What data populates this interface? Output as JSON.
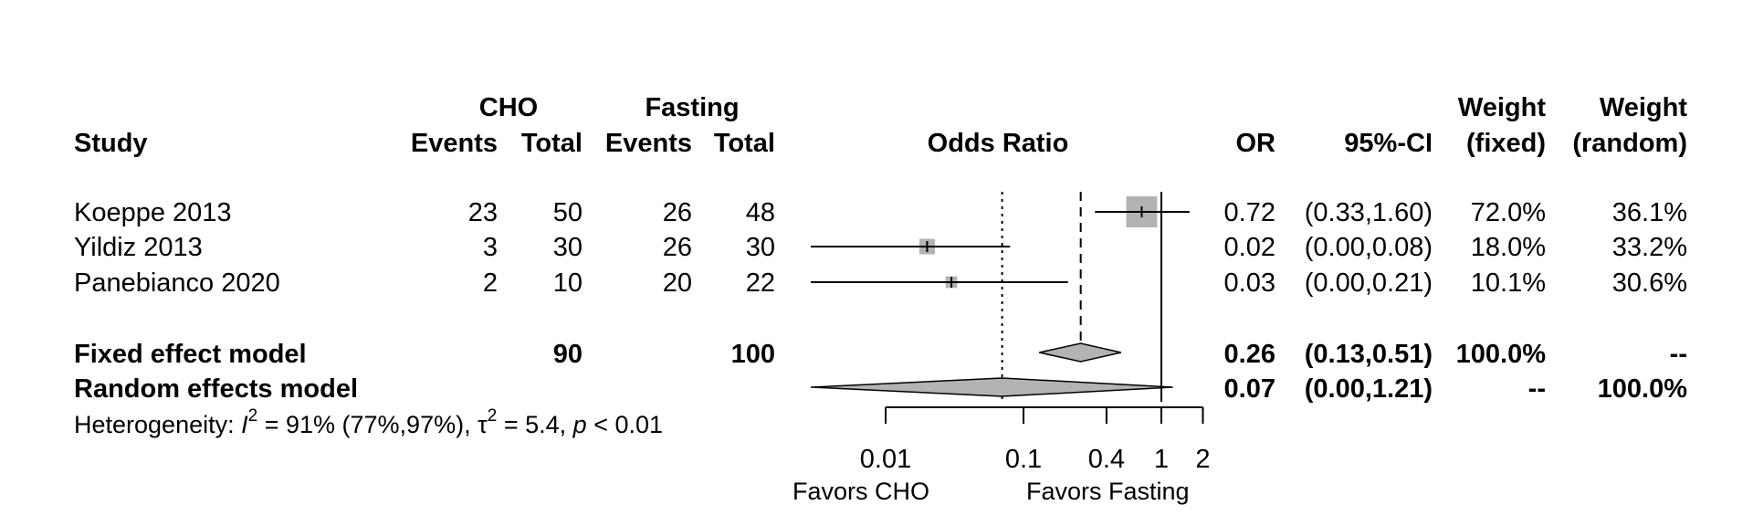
{
  "chart_data": {
    "type": "forest",
    "headers": {
      "study": "Study",
      "group1": "CHO",
      "group2": "Fasting",
      "events": "Events",
      "total": "Total",
      "plot_label": "Odds Ratio",
      "or": "OR",
      "ci": "95%-CI",
      "weight": "Weight",
      "fixed": "(fixed)",
      "random": "(random)"
    },
    "studies": [
      {
        "name": "Koeppe 2013",
        "cho_events": "23",
        "cho_total": "50",
        "fasting_events": "26",
        "fasting_total": "48",
        "or": 0.72,
        "ci_low": 0.33,
        "ci_high": 1.6,
        "or_text": "0.72",
        "ci_text": "(0.33,1.60)",
        "w_fixed": 72.0,
        "w_random": 36.1,
        "w_fixed_text": "72.0%",
        "w_random_text": "36.1%"
      },
      {
        "name": "Yildiz 2013",
        "cho_events": "3",
        "cho_total": "30",
        "fasting_events": "26",
        "fasting_total": "30",
        "or": 0.02,
        "ci_low": 0.0,
        "ci_high": 0.08,
        "or_text": "0.02",
        "ci_text": "(0.00,0.08)",
        "w_fixed": 18.0,
        "w_random": 33.2,
        "w_fixed_text": "18.0%",
        "w_random_text": "33.2%"
      },
      {
        "name": "Panebianco 2020",
        "cho_events": "2",
        "cho_total": "10",
        "fasting_events": "20",
        "fasting_total": "22",
        "or": 0.03,
        "ci_low": 0.0,
        "ci_high": 0.21,
        "or_text": "0.03",
        "ci_text": "(0.00,0.21)",
        "w_fixed": 10.1,
        "w_random": 30.6,
        "w_fixed_text": "10.1%",
        "w_random_text": "30.6%"
      }
    ],
    "fixed_model": {
      "label": "Fixed effect model",
      "cho_total": "90",
      "fasting_total": "100",
      "or": 0.26,
      "ci_low": 0.13,
      "ci_high": 0.51,
      "or_text": "0.26",
      "ci_text": "(0.13,0.51)",
      "w_fixed_text": "100.0%",
      "w_random_text": "--"
    },
    "random_model": {
      "label": "Random effects model",
      "or": 0.07,
      "ci_low": 0.0,
      "ci_high": 1.21,
      "or_text": "0.07",
      "ci_text": "(0.00,1.21)",
      "w_fixed_text": "--",
      "w_random_text": "100.0%"
    },
    "heterogeneity": {
      "prefix": "Heterogeneity: ",
      "i2_symbol": "I",
      "i2_text": " = 91% (77%,97%), ",
      "tau_symbol": "τ",
      "tau_text": " = 5.4, ",
      "p_symbol": "p",
      "p_text": " < 0.01",
      "sup": "2"
    },
    "x_axis": {
      "scale": "log",
      "ticks": [
        0.01,
        0.1,
        0.4,
        1,
        2
      ],
      "tick_labels": [
        "0.01",
        "0.1",
        "0.4",
        "1",
        "2"
      ],
      "favors_left": "Favors CHO",
      "favors_right": "Favors Fasting",
      "null_value": 1
    }
  }
}
